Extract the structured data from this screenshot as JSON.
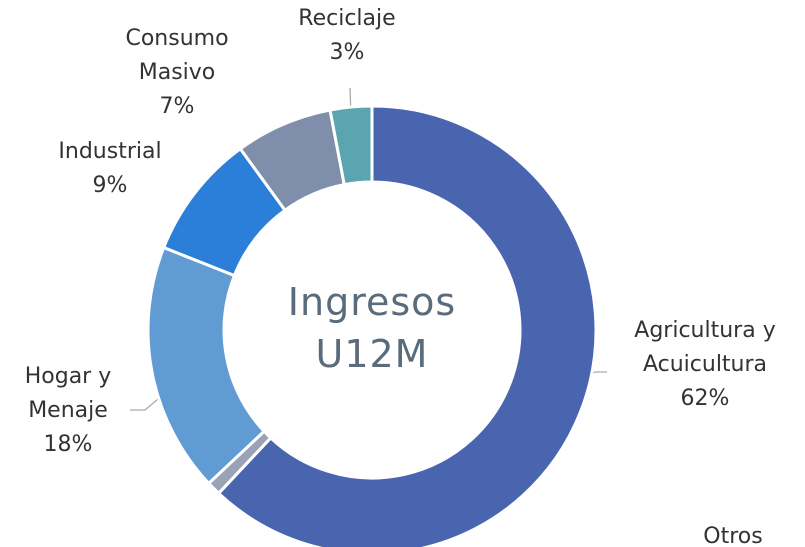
{
  "chart_data": {
    "type": "pie",
    "title": "Ingresos U12M",
    "categories": [
      "Agricultura y Acuicultura",
      "Otros",
      "Hogar y Menaje",
      "Industrial",
      "Consumo Masivo",
      "Reciclaje"
    ],
    "values": [
      62,
      1,
      18,
      9,
      7,
      3
    ],
    "value_labels": [
      "62%",
      null,
      "18%",
      "9%",
      "7%",
      "3%"
    ],
    "colors": [
      "#4a65b0",
      "#9aa3b5",
      "#619bd3",
      "#2b7fd8",
      "#7f8fab",
      "#5aa5b0"
    ]
  }
}
